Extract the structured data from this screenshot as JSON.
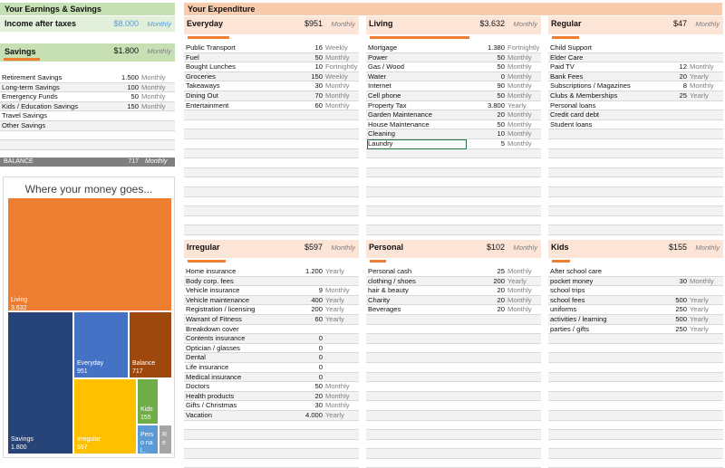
{
  "earnings": {
    "title": "Your Earnings & Savings",
    "income_label": "Income after taxes",
    "income_value": "$8.000",
    "income_freq": "Monthly"
  },
  "savings": {
    "title": "Savings",
    "amount": "$1.800",
    "freq": "Monthly",
    "rows": [
      {
        "label": "Retirement Savings",
        "value": "1.500",
        "freq": "Monthly"
      },
      {
        "label": "Long-term Savings",
        "value": "100",
        "freq": "Monthly"
      },
      {
        "label": "Emergency Funds",
        "value": "50",
        "freq": "Monthly"
      },
      {
        "label": "Kids / Education Savings",
        "value": "150",
        "freq": "Monthly"
      },
      {
        "label": "Travel Savings",
        "value": "",
        "freq": ""
      },
      {
        "label": "Other Savings",
        "value": "",
        "freq": ""
      }
    ],
    "balance_label": "BALANCE",
    "balance_value": "717",
    "balance_freq": "Monthly"
  },
  "expenditure_title": "Your Expenditure",
  "panels": {
    "everyday": {
      "title": "Everyday",
      "amount": "$951",
      "freq": "Monthly",
      "rows": [
        {
          "label": "Public Transport",
          "value": "16",
          "freq": "Weekly"
        },
        {
          "label": "Fuel",
          "value": "50",
          "freq": "Monthly"
        },
        {
          "label": "Bought Lunches",
          "value": "10",
          "freq": "Fortnightly"
        },
        {
          "label": "Groceries",
          "value": "150",
          "freq": "Weekly"
        },
        {
          "label": "Takeaways",
          "value": "30",
          "freq": "Monthly"
        },
        {
          "label": "Dining Out",
          "value": "70",
          "freq": "Monthly"
        },
        {
          "label": "Entertainment",
          "value": "60",
          "freq": "Monthly"
        }
      ]
    },
    "living": {
      "title": "Living",
      "amount": "$3.632",
      "freq": "Monthly",
      "rows": [
        {
          "label": "Mortgage",
          "value": "1.380",
          "freq": "Fortnightly"
        },
        {
          "label": "Power",
          "value": "50",
          "freq": "Monthly"
        },
        {
          "label": "Gas / Wood",
          "value": "50",
          "freq": "Monthly"
        },
        {
          "label": "Water",
          "value": "0",
          "freq": "Monthly"
        },
        {
          "label": "Internet",
          "value": "90",
          "freq": "Monthly"
        },
        {
          "label": "Cell phone",
          "value": "50",
          "freq": "Monthly"
        },
        {
          "label": "Property Tax",
          "value": "3.800",
          "freq": "Yearly"
        },
        {
          "label": "Garden Maintenance",
          "value": "20",
          "freq": "Monthly"
        },
        {
          "label": "House Maintenance",
          "value": "50",
          "freq": "Monthly"
        },
        {
          "label": "Cleaning",
          "value": "10",
          "freq": "Monthly"
        },
        {
          "label": "Laundry",
          "value": "5",
          "freq": "Monthly"
        }
      ]
    },
    "regular": {
      "title": "Regular",
      "amount": "$47",
      "freq": "Monthly",
      "rows": [
        {
          "label": "Child Support",
          "value": "",
          "freq": ""
        },
        {
          "label": "Elder Care",
          "value": "",
          "freq": ""
        },
        {
          "label": "Paid TV",
          "value": "12",
          "freq": "Monthly"
        },
        {
          "label": "Bank Fees",
          "value": "20",
          "freq": "Yearly"
        },
        {
          "label": "Subscriptions / Magazines",
          "value": "8",
          "freq": "Monthly"
        },
        {
          "label": "Clubs & Memberships",
          "value": "25",
          "freq": "Yearly"
        },
        {
          "label": "Personal loans",
          "value": "",
          "freq": ""
        },
        {
          "label": "Credit card debt",
          "value": "",
          "freq": ""
        },
        {
          "label": "Student loans",
          "value": "",
          "freq": ""
        }
      ]
    },
    "irregular": {
      "title": "Irregular",
      "amount": "$597",
      "freq": "Monthly",
      "rows": [
        {
          "label": "Home insurance",
          "value": "1.200",
          "freq": "Yearly"
        },
        {
          "label": "Body corp. fees",
          "value": "",
          "freq": ""
        },
        {
          "label": "Vehicle insurance",
          "value": "9",
          "freq": "Monthly"
        },
        {
          "label": "Vehicle maintenance",
          "value": "400",
          "freq": "Yearly"
        },
        {
          "label": "Registration / licensing",
          "value": "200",
          "freq": "Yearly"
        },
        {
          "label": "Warrant of Fitness",
          "value": "60",
          "freq": "Yearly"
        },
        {
          "label": "Breakdown cover",
          "value": "",
          "freq": ""
        },
        {
          "label": "Contents insurance",
          "value": "0",
          "freq": ""
        },
        {
          "label": "Optician / glasses",
          "value": "0",
          "freq": ""
        },
        {
          "label": "Dental",
          "value": "0",
          "freq": ""
        },
        {
          "label": "Life insurance",
          "value": "0",
          "freq": ""
        },
        {
          "label": "Medical insurance",
          "value": "0",
          "freq": ""
        },
        {
          "label": "Doctors",
          "value": "50",
          "freq": "Monthly"
        },
        {
          "label": "Health products",
          "value": "20",
          "freq": "Monthly"
        },
        {
          "label": "Gifts / Christmas",
          "value": "30",
          "freq": "Monthly"
        },
        {
          "label": "Vacation",
          "value": "4.000",
          "freq": "Yearly"
        }
      ]
    },
    "personal": {
      "title": "Personal",
      "amount": "$102",
      "freq": "Monthly",
      "rows": [
        {
          "label": "Personal cash",
          "value": "25",
          "freq": "Monthly"
        },
        {
          "label": "clothing / shoes",
          "value": "200",
          "freq": "Yearly"
        },
        {
          "label": "hair & beauty",
          "value": "20",
          "freq": "Monthly"
        },
        {
          "label": "Charity",
          "value": "20",
          "freq": "Monthly"
        },
        {
          "label": "Beverages",
          "value": "20",
          "freq": "Monthly"
        }
      ]
    },
    "kids": {
      "title": "Kids",
      "amount": "$155",
      "freq": "Monthly",
      "rows": [
        {
          "label": "After school care",
          "value": "",
          "freq": ""
        },
        {
          "label": "pocket money",
          "value": "30",
          "freq": "Monthly"
        },
        {
          "label": "school trips",
          "value": "",
          "freq": ""
        },
        {
          "label": "school fees",
          "value": "500",
          "freq": "Yearly"
        },
        {
          "label": "uniforms",
          "value": "250",
          "freq": "Yearly"
        },
        {
          "label": "activities / learning",
          "value": "500",
          "freq": "Yearly"
        },
        {
          "label": "parties / gifts",
          "value": "250",
          "freq": "Yearly"
        }
      ]
    }
  },
  "chart_data": {
    "type": "treemap",
    "title": "Where your money goes...",
    "items": [
      {
        "name": "Living",
        "label": "3.632",
        "value": 3632,
        "color": "#ed7d31"
      },
      {
        "name": "Savings",
        "label": "1.800",
        "value": 1800,
        "color": "#264478"
      },
      {
        "name": "Everyday",
        "label": "951",
        "value": 951,
        "color": "#4472c4"
      },
      {
        "name": "Balance",
        "label": "717",
        "value": 717,
        "color": "#9e480e"
      },
      {
        "name": "Irregular",
        "label": "597",
        "value": 597,
        "color": "#ffc000"
      },
      {
        "name": "Kids",
        "label": "155",
        "value": 155,
        "color": "#70ad47"
      },
      {
        "name": "Perso nal...",
        "label": "",
        "value": 102,
        "color": "#5b9bd5"
      },
      {
        "name": "R e",
        "label": "",
        "value": 47,
        "color": "#a5a5a5"
      }
    ]
  }
}
